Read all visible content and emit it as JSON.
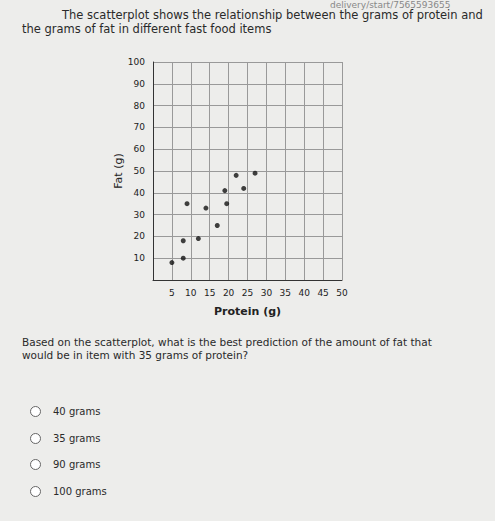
{
  "header": {
    "url": "delivery/start/7565593655"
  },
  "intro": "The scatterplot shows the relationship between the grams of protein and the grams of fat in different fast food items",
  "chart_data": {
    "type": "scatter",
    "x_label": "Protein (g)",
    "y_label": "Fat (g)",
    "x": [
      5,
      8,
      8,
      12,
      17,
      9,
      14,
      19.5,
      19,
      24,
      22,
      27
    ],
    "values": [
      8,
      10,
      18,
      19,
      25,
      35,
      33,
      35,
      41,
      42,
      48,
      49
    ],
    "color": "#111111",
    "marker": "circle",
    "xlim": [
      0,
      50
    ],
    "xticks": [
      5,
      10,
      15,
      20,
      25,
      30,
      35,
      40,
      45,
      50
    ],
    "ylim": [
      0,
      100
    ],
    "yticks": [
      10,
      20,
      30,
      40,
      50,
      60,
      70,
      80,
      90,
      100
    ],
    "grid": true
  },
  "question": "Based on the scatterplot, what is the best prediction of the amount of fat that would be in item with 35 grams of protein?",
  "options": [
    "40 grams",
    "35 grams",
    "90 grams",
    "100 grams"
  ]
}
